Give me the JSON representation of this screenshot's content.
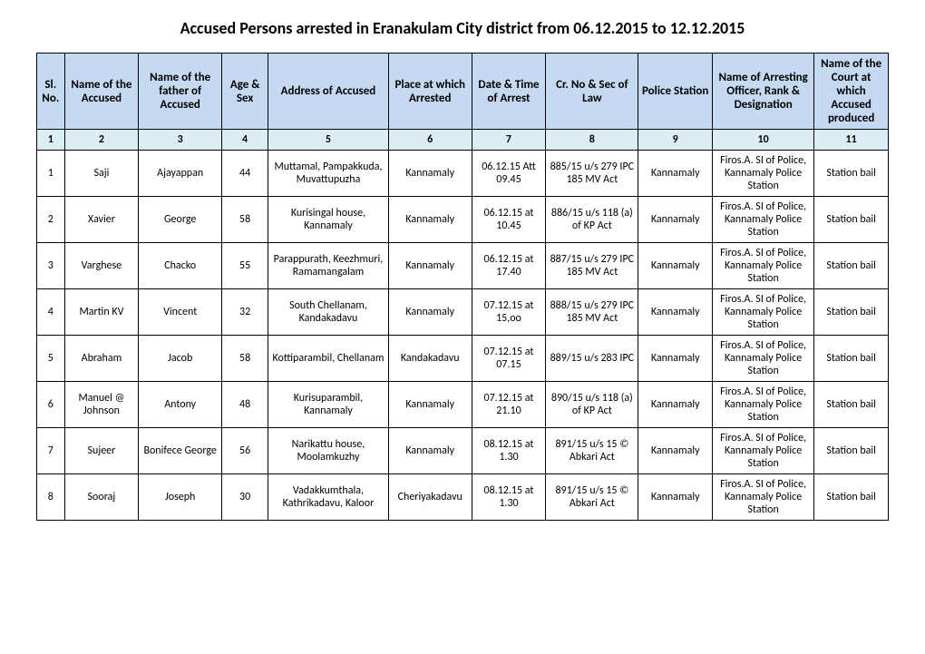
{
  "title": "Accused Persons arrested in   Eranakulam City  district from  06.12.2015 to 12.12.2015",
  "headers": {
    "c1": "Sl. No.",
    "c2": "Name of the Accused",
    "c3": "Name of the father of Accused",
    "c4": "Age & Sex",
    "c5": "Address of Accused",
    "c6": "Place at which Arrested",
    "c7": "Date & Time of Arrest",
    "c8": "Cr. No & Sec of Law",
    "c9": "Police Station",
    "c10": "Name of Arresting Officer, Rank & Designation",
    "c11": "Name of the Court at which Accused produced"
  },
  "numrow": {
    "c1": "1",
    "c2": "2",
    "c3": "3",
    "c4": "4",
    "c5": "5",
    "c6": "6",
    "c7": "7",
    "c8": "8",
    "c9": "9",
    "c10": "10",
    "c11": "11"
  },
  "rows": [
    {
      "c1": "1",
      "c2": "Saji",
      "c3": "Ajayappan",
      "c4": "44",
      "c5": "Muttamal, Pampakkuda, Muvattupuzha",
      "c6": "Kannamaly",
      "c7": "06.12.15 Att 09.45",
      "c8": "885/15 u/s 279 IPC 185 MV Act",
      "c9": "Kannamaly",
      "c10": "Firos.A. SI of Police, Kannamaly Police Station",
      "c11": "Station bail"
    },
    {
      "c1": "2",
      "c2": "Xavier",
      "c3": "George",
      "c4": "58",
      "c5": "Kurisingal house, Kannamaly",
      "c6": "Kannamaly",
      "c7": "06.12.15 at 10.45",
      "c8": "886/15 u/s 118 (a) of KP Act",
      "c9": "Kannamaly",
      "c10": "Firos.A. SI of Police, Kannamaly Police Station",
      "c11": "Station bail"
    },
    {
      "c1": "3",
      "c2": "Varghese",
      "c3": "Chacko",
      "c4": "55",
      "c5": "Parappurath, Keezhmuri, Ramamangalam",
      "c6": "Kannamaly",
      "c7": "06.12.15 at 17.40",
      "c8": "887/15 u/s 279 IPC 185 MV Act",
      "c9": "Kannamaly",
      "c10": "Firos.A. SI of Police, Kannamaly Police Station",
      "c11": "Station bail"
    },
    {
      "c1": "4",
      "c2": "Martin KV",
      "c3": "Vincent",
      "c4": "32",
      "c5": "South Chellanam, Kandakadavu",
      "c6": "Kannamaly",
      "c7": "07.12.15 at 15,oo",
      "c8": "888/15 u/s 279 IPC 185 MV Act",
      "c9": "Kannamaly",
      "c10": "Firos.A. SI of Police, Kannamaly Police Station",
      "c11": "Station bail"
    },
    {
      "c1": "5",
      "c2": "Abraham",
      "c3": "Jacob",
      "c4": "58",
      "c5": "Kottiparambil, Chellanam",
      "c6": "Kandakadavu",
      "c7": "07.12.15 at 07.15",
      "c8": "889/15 u/s 283 IPC",
      "c9": "Kannamaly",
      "c10": "Firos.A. SI of Police, Kannamaly Police Station",
      "c11": "Station bail"
    },
    {
      "c1": "6",
      "c2": "Manuel @ Johnson",
      "c3": "Antony",
      "c4": "48",
      "c5": "Kurisuparambil, Kannamaly",
      "c6": "Kannamaly",
      "c7": "07.12.15 at 21.10",
      "c8": "890/15 u/s 118 (a) of KP Act",
      "c9": "Kannamaly",
      "c10": "Firos.A. SI of Police, Kannamaly Police Station",
      "c11": "Station bail"
    },
    {
      "c1": "7",
      "c2": "Sujeer",
      "c3": "Bonifece George",
      "c4": "56",
      "c5": "Narikattu house, Moolamkuzhy",
      "c6": "Kannamaly",
      "c7": "08.12.15 at 1.30",
      "c8": "891/15 u/s 15 © Abkari Act",
      "c9": "Kannamaly",
      "c10": "Firos.A. SI of Police, Kannamaly Police Station",
      "c11": "Station bail"
    },
    {
      "c1": "8",
      "c2": "Sooraj",
      "c3": "Joseph",
      "c4": "30",
      "c5": "Vadakkumthala, Kathrikadavu, Kaloor",
      "c6": "Cheriyakadavu",
      "c7": "08.12.15 at 1.30",
      "c8": "891/15 u/s 15 © Abkari Act",
      "c9": "Kannamaly",
      "c10": "Firos.A. SI of Police, Kannamaly Police Station",
      "c11": "Station bail"
    }
  ]
}
